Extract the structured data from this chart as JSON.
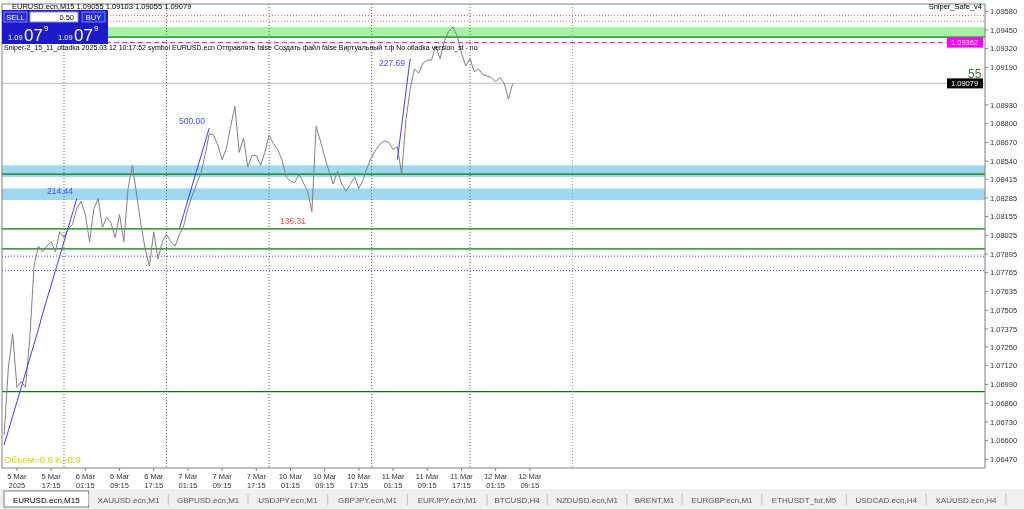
{
  "chart_data": {
    "type": "line",
    "categories": [
      null,
      null,
      null,
      "5 Mar 2025",
      null,
      null,
      null,
      null,
      null,
      null,
      null,
      "5 Mar 17:15",
      null,
      null,
      null,
      null,
      null,
      null,
      null,
      "6 Mar 01:15",
      null,
      null,
      null,
      null,
      null,
      null,
      null,
      "6 Mar 09:15",
      null,
      null,
      null,
      null,
      null,
      null,
      null,
      "6 Mar 17:15",
      null,
      null,
      null,
      null,
      null,
      null,
      null,
      "7 Mar 01:15",
      null,
      null,
      null,
      null,
      null,
      null,
      null,
      "7 Mar 09:15",
      null,
      null,
      null,
      null,
      null,
      null,
      null,
      "7 Mar 17:15",
      null,
      null,
      null,
      null,
      null,
      null,
      null,
      "10 Mar 01:15",
      null,
      null,
      null,
      null,
      null,
      null,
      null,
      "10 Mar 09:15",
      null,
      null,
      null,
      null,
      null,
      null,
      null,
      "10 Mar 17:15",
      null,
      null,
      null,
      null,
      null,
      null,
      null,
      "11 Mar 01:15",
      null,
      null,
      null,
      null,
      null,
      null,
      null,
      "11 Mar 09:15",
      null,
      null,
      null,
      null,
      null,
      null,
      null,
      "11 Mar 17:15",
      null,
      null,
      null,
      null,
      null,
      null,
      null,
      "12 Mar 01:15",
      null,
      null,
      null,
      null,
      null,
      null,
      null,
      "12 Mar 09:15",
      null,
      null,
      null,
      null,
      null,
      null,
      null,
      null,
      null,
      null,
      null,
      null,
      null,
      null,
      null,
      null,
      null,
      null,
      null,
      null,
      null,
      null,
      null,
      null,
      null,
      null,
      null,
      null,
      null,
      null,
      null,
      null,
      null,
      null,
      null,
      null,
      null,
      null,
      null,
      null,
      null,
      null,
      null,
      null,
      null,
      null,
      null,
      null,
      null,
      null,
      null,
      null,
      null,
      null,
      null,
      null,
      null,
      null,
      null,
      null,
      null,
      null,
      null,
      null,
      null,
      null,
      null,
      null,
      null,
      null,
      null,
      null,
      null,
      null,
      null,
      null,
      null,
      null,
      null,
      null,
      null,
      null,
      null,
      null,
      null,
      null,
      null,
      null,
      null,
      null,
      null,
      null,
      null,
      null,
      null,
      null,
      null,
      null,
      null,
      null,
      null,
      null,
      null,
      null,
      null,
      null
    ],
    "ylim": [
      1.0641,
      1.0963
    ],
    "yticks": [
      {
        "value": 1.0958,
        "label": "1.09580"
      },
      {
        "value": 1.0945,
        "label": "1.09450"
      },
      {
        "value": 1.0932,
        "label": "1.09320"
      },
      {
        "value": 1.0919,
        "label": "1.09190"
      },
      {
        "value": 1.0893,
        "label": "1.08930"
      },
      {
        "value": 1.088,
        "label": "1.08800"
      },
      {
        "value": 1.0867,
        "label": "1.08670"
      },
      {
        "value": 1.0854,
        "label": "1.08540"
      },
      {
        "value": 1.08415,
        "label": "1.08415"
      },
      {
        "value": 1.08285,
        "label": "1.08285"
      },
      {
        "value": 1.08155,
        "label": "1.08155"
      },
      {
        "value": 1.08025,
        "label": "1.08025"
      },
      {
        "value": 1.07895,
        "label": "1.07895"
      },
      {
        "value": 1.07765,
        "label": "1.07765"
      },
      {
        "value": 1.07635,
        "label": "1.07635"
      },
      {
        "value": 1.07505,
        "label": "1.07505"
      },
      {
        "value": 1.07375,
        "label": "1.07375"
      },
      {
        "value": 1.0725,
        "label": "1.07250"
      },
      {
        "value": 1.0712,
        "label": "1.07120"
      },
      {
        "value": 1.0699,
        "label": "1.06990"
      },
      {
        "value": 1.0686,
        "label": "1.06860"
      },
      {
        "value": 1.0673,
        "label": "1.06730"
      },
      {
        "value": 1.066,
        "label": "1.06600"
      },
      {
        "value": 1.0647,
        "label": "1.06470"
      }
    ],
    "series": [
      {
        "color": "#808080",
        "values": [
          1.0664,
          1.0711,
          1.0734,
          1.0697,
          1.0701,
          1.0697,
          1.0731,
          1.0781,
          1.0795,
          1.0791,
          1.0795,
          1.0798,
          1.0791,
          1.0805,
          1.0801,
          1.0807,
          1.081,
          1.0821,
          1.0826,
          1.0817,
          1.0798,
          1.0821,
          1.0828,
          1.0808,
          1.0815,
          1.0811,
          1.0801,
          1.0817,
          1.0798,
          1.0835,
          1.0851,
          1.0831,
          1.081,
          1.0793,
          1.0781,
          1.0805,
          1.0786,
          1.0798,
          1.0803,
          1.0798,
          1.0795,
          1.0803,
          1.0809,
          1.0821,
          1.083,
          1.0838,
          1.0845,
          1.0858,
          1.0873,
          1.0872,
          1.0865,
          1.0855,
          1.0863,
          1.0878,
          1.0892,
          1.086,
          1.087,
          1.085,
          1.0858,
          1.0858,
          1.0851,
          1.086,
          1.0872,
          1.0866,
          1.0862,
          1.0855,
          1.0843,
          1.084,
          1.0839,
          1.0845,
          1.0839,
          1.0833,
          1.0819,
          1.0878,
          1.0868,
          1.0857,
          1.0847,
          1.0838,
          1.0847,
          1.0838,
          1.0833,
          1.0838,
          1.0843,
          1.0835,
          1.0841,
          1.085,
          1.0857,
          1.0862,
          1.0866,
          1.0868,
          1.0867,
          1.0862,
          1.0864,
          1.0845,
          1.0882,
          1.0904,
          1.0918,
          1.0915,
          1.0922,
          1.0924,
          1.0924,
          1.0934,
          1.0925,
          1.0937,
          1.0944,
          1.0947,
          1.0941,
          1.0929,
          1.092,
          1.0925,
          1.0916,
          1.0918,
          1.0914,
          1.0913,
          1.0912,
          1.0909,
          1.0912,
          1.0908,
          1.0897,
          1.0908,
          null,
          null,
          null,
          null,
          null,
          null,
          null,
          null,
          null,
          null,
          null,
          null,
          null,
          null,
          null,
          null,
          null,
          null,
          null,
          null,
          null,
          null,
          null,
          null,
          null,
          null,
          null,
          null,
          null,
          null,
          null,
          null,
          null,
          null,
          null,
          null,
          null,
          null,
          null,
          null,
          null,
          null,
          null,
          null,
          null,
          null,
          null,
          null,
          null,
          null,
          null,
          null,
          null,
          null,
          null,
          null,
          null,
          null,
          null,
          null,
          null,
          null,
          null,
          null,
          null,
          null,
          null,
          null,
          null,
          null,
          null,
          null,
          null,
          null,
          null,
          null,
          null,
          null,
          null,
          null,
          null,
          null,
          null,
          null,
          null,
          null,
          null,
          null,
          null,
          null,
          null,
          null,
          null,
          null,
          null,
          null,
          null,
          null,
          null,
          null,
          null,
          null,
          null,
          null,
          null,
          null,
          null,
          null,
          null,
          null
        ]
      },
      {
        "color": "#3b3bff",
        "values": [
          1.0657,
          1.0667,
          1.0677,
          1.0687,
          1.0697,
          1.0707,
          1.0717,
          1.0727,
          1.0737,
          1.0748,
          1.0758,
          1.0768,
          1.0778,
          1.0788,
          1.0798,
          1.0808,
          1.0818,
          1.0828,
          null,
          null,
          null,
          null,
          null,
          null,
          null,
          null,
          null,
          null,
          null,
          null,
          null,
          null,
          null,
          null,
          null,
          null,
          null,
          null,
          null,
          null,
          null,
          1.0807,
          1.0817,
          1.0827,
          1.0837,
          1.0847,
          1.0857,
          1.0867,
          1.0877,
          null,
          null,
          null,
          null,
          null,
          null,
          null,
          null,
          null,
          null,
          null,
          null,
          null,
          null,
          null,
          null,
          null,
          null,
          null,
          null,
          null,
          null,
          null,
          null,
          null,
          null,
          null,
          null,
          null,
          null,
          null,
          null,
          null,
          null,
          null,
          null,
          null,
          null,
          null,
          null,
          null,
          null,
          null,
          1.0855,
          1.0878,
          1.0902,
          1.0925,
          null,
          null,
          null,
          null,
          null,
          null,
          null,
          null,
          null,
          null,
          null,
          null,
          null,
          null,
          null,
          null,
          null,
          null,
          null,
          null,
          null,
          null,
          null,
          null,
          null,
          null,
          null,
          null,
          null,
          null,
          null,
          null,
          null,
          null,
          null,
          null,
          null,
          null,
          null,
          null,
          null,
          null,
          null,
          null,
          null,
          null,
          null,
          null,
          null,
          null,
          null,
          null,
          null,
          null,
          null,
          null,
          null,
          null,
          null,
          null,
          null,
          null,
          null,
          null,
          null,
          null,
          null,
          null,
          null,
          null,
          null,
          null,
          null,
          null,
          null,
          null,
          null,
          null,
          null,
          null,
          null,
          null,
          null,
          null,
          null,
          null,
          null,
          null,
          null,
          null,
          null,
          null,
          null,
          null,
          null,
          null,
          null,
          null,
          null,
          null,
          null,
          null,
          null,
          null,
          null,
          null,
          null,
          null,
          null,
          null,
          null,
          null,
          null,
          null,
          null,
          null,
          null,
          null,
          null,
          null,
          null,
          null,
          null,
          null,
          null,
          null,
          null,
          null,
          null,
          null,
          null,
          null,
          null,
          null
        ]
      }
    ],
    "ref_lines": [
      {
        "axis": "y",
        "value": 1.094,
        "color": "#008000",
        "line_style": "solid"
      },
      {
        "axis": "y",
        "value": 1.0845,
        "color": "#008000",
        "line_style": "solid"
      },
      {
        "axis": "y",
        "value": 1.0807,
        "color": "#008000",
        "line_style": "solid"
      },
      {
        "axis": "y",
        "value": 1.0793,
        "color": "#008000",
        "line_style": "solid"
      },
      {
        "axis": "y",
        "value": 1.0694,
        "color": "#008000",
        "line_style": "solid"
      },
      {
        "axis": "y",
        "value": 1.0788,
        "color": "#4040ff",
        "line_style": "dotted"
      },
      {
        "axis": "y",
        "value": 1.0778,
        "color": "#4040ff",
        "line_style": "dotted"
      },
      {
        "axis": "y",
        "value": 1.0955,
        "color": "#ff6060",
        "line_style": "dotted"
      },
      {
        "axis": "y",
        "value": 1.0951,
        "color": "#ff6060",
        "line_style": "dotted"
      },
      {
        "axis": "y",
        "value": 1.09362,
        "label": "1.09362",
        "color": "#ff00ff",
        "line_style": "dashed"
      },
      {
        "axis": "y",
        "value": 1.09079,
        "label": "1.09079",
        "color": "#c8c8c8",
        "line_style": "solid"
      }
    ],
    "bands": [
      {
        "axis": "y",
        "from": 1.0843,
        "to": 1.0851,
        "color": "#87ceeb"
      },
      {
        "axis": "y",
        "from": 1.0827,
        "to": 1.0835,
        "color": "#87ceeb"
      },
      {
        "axis": "y",
        "from": 1.094,
        "to": 1.0947,
        "color": "#90ee90"
      }
    ],
    "annotations": [
      "EURUSD.ecn,M15  1.09055 1.09103 1.09055 1.09079",
      "Sniper-2_15_11_otladka   2025.03.12 10:17:52   symbol EURUSD.ecn   Отправлять false   Создать файл false   Виртуальный т.ф No   otladka   version_st - no",
      "Sniper_Safe_v4",
      "Объем=0.6 K=0.9",
      "55",
      "SELL",
      "0.50",
      "BUY",
      "1.09",
      "07",
      "9",
      "1.09",
      "07",
      "9",
      "214.44",
      "500.00",
      "227.69",
      "136.31",
      "EURUSD.ecn,M15",
      "XAUUSD.ecn,M1",
      "GBPUSD.ecn,M1",
      "USDJPY.ecn,M1",
      "GBPJPY.ecn,M1",
      "EURJPY.ecn,M1",
      "BTCUSD,H4",
      "NZDUSD.ecn,M1",
      "BRENT,M1",
      "EURGBP.ecn,M1",
      "ETHUSDT_fut,M5",
      "USDCAD.ecn,H4",
      "XAUUSD.ecn,H4"
    ]
  }
}
